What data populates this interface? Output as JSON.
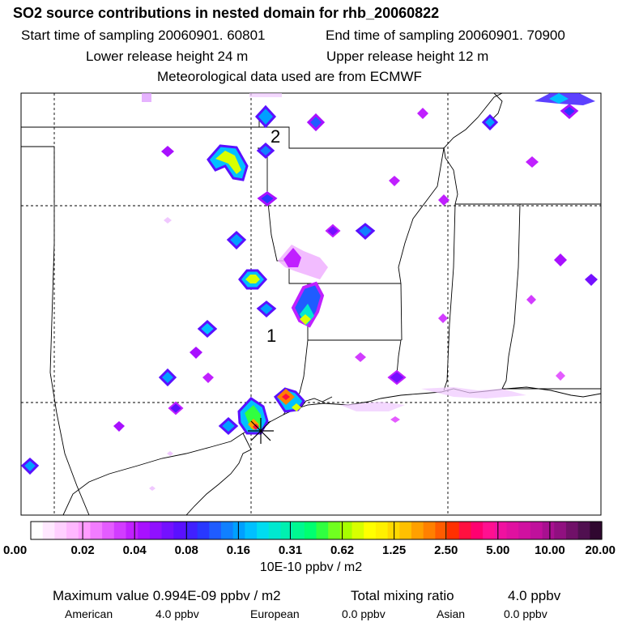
{
  "header": {
    "title": "SO2 source contributions in nested domain for rhb_20060822",
    "start_label": "Start time of sampling 20060901. 60801",
    "end_label": "End time of sampling 20060901. 70900",
    "lower_release": "Lower release height   24 m",
    "upper_release": "Upper release height   12 m",
    "met_data": "Meteorological data used are from ECMWF"
  },
  "map": {
    "markers": [
      "1",
      "2"
    ],
    "receptor_symbol": "star"
  },
  "colorbar": {
    "unit": "10E-10 ppbv / m2",
    "tick_labels": [
      "0.00",
      "0.02",
      "0.04",
      "0.08",
      "0.16",
      "0.31",
      "0.62",
      "1.25",
      "2.50",
      "5.00",
      "10.00",
      "20.00"
    ],
    "colors": [
      "#ffffff",
      "#ffe8ff",
      "#ffd0ff",
      "#ffb8ff",
      "#ff9cff",
      "#f27cff",
      "#e45cff",
      "#d23cff",
      "#c020ff",
      "#a810ff",
      "#9010ff",
      "#7410ff",
      "#5a10ff",
      "#4020ff",
      "#2838ff",
      "#1f5cff",
      "#1080ff",
      "#00a0ff",
      "#00c0ff",
      "#00dcf0",
      "#00e8d0",
      "#00f0b0",
      "#00f890",
      "#00ff70",
      "#30ff40",
      "#70ff20",
      "#a8ff00",
      "#d8ff00",
      "#ffff00",
      "#fff000",
      "#ffd800",
      "#ffc000",
      "#ffa000",
      "#ff8000",
      "#ff5c00",
      "#ff3000",
      "#ff1040",
      "#ff0070",
      "#ff1090",
      "#f010a0",
      "#e010a0",
      "#d010a0",
      "#c0109c",
      "#a81090",
      "#901080",
      "#701068",
      "#501050",
      "#300830"
    ]
  },
  "footer": {
    "max_label": "Maximum value  0.994E-09 ppbv / m2",
    "total_label": "Total mixing ratio",
    "total_value": "4.0 ppbv",
    "american_label": "American",
    "american_value": "4.0 ppbv",
    "european_label": "European",
    "european_value": "0.0 ppbv",
    "asian_label": "Asian",
    "asian_value": "0.0 ppbv"
  },
  "chart_data": {
    "type": "heatmap",
    "title": "SO2 source contributions in nested domain for rhb_20060822",
    "colorbar_levels": [
      0.0,
      0.02,
      0.04,
      0.08,
      0.16,
      0.31,
      0.62,
      1.25,
      2.5,
      5.0,
      10.0,
      20.0
    ],
    "colorbar_unit": "10E-10 ppbv / m2",
    "maximum_value": "0.994E-09 ppbv / m2",
    "total_mixing_ratio": "4.0 ppbv",
    "contributions": [
      {
        "region": "American",
        "value": "4.0 ppbv"
      },
      {
        "region": "European",
        "value": "0.0 ppbv"
      },
      {
        "region": "Asian",
        "value": "0.0 ppbv"
      }
    ]
  }
}
